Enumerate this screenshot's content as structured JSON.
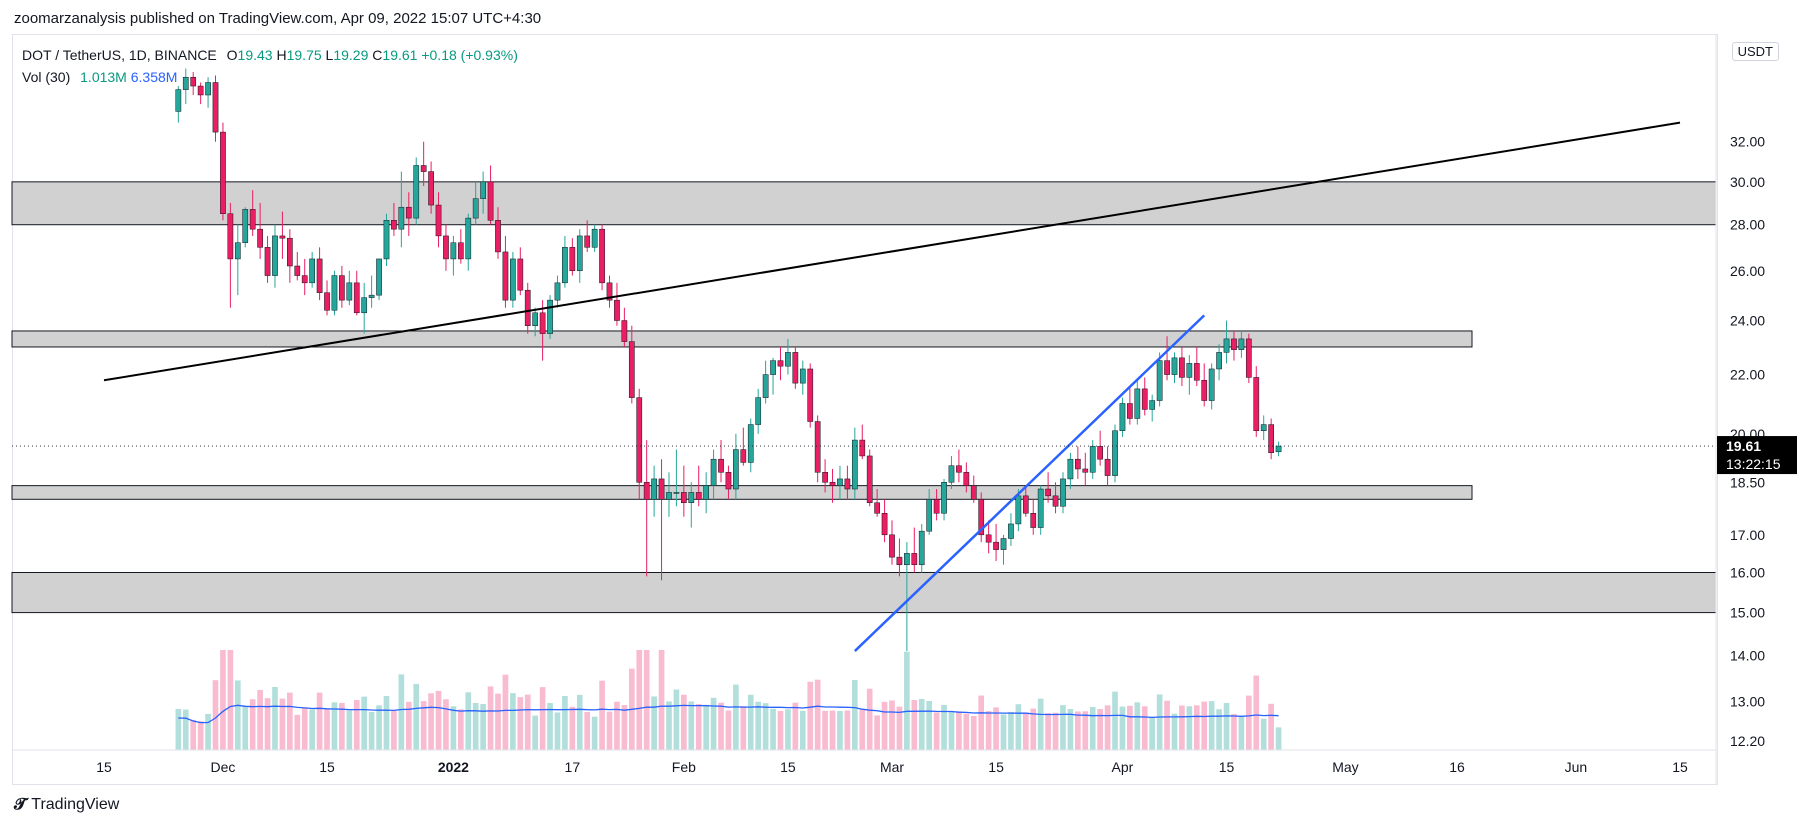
{
  "header": {
    "published_by": "zoomarzanalysis published on TradingView.com, Apr 09, 2022 15:07 UTC+4:30"
  },
  "legend": {
    "symbol": "DOT / TetherUS, 1D, BINANCE",
    "open_label": "O",
    "open": "19.43",
    "high_label": "H",
    "high": "19.75",
    "low_label": "L",
    "low": "19.29",
    "close_label": "C",
    "close": "19.61",
    "change": "+0.18 (+0.93%)",
    "vol_label": "Vol (30)",
    "vol_value": "1.013M",
    "vol_ma": "6.358M"
  },
  "currency_badge": "USDT",
  "footer": {
    "brand": "TradingView"
  },
  "price_badge": {
    "price": "19.61",
    "countdown": "13:22:15"
  },
  "colors": {
    "up": "#26a69a",
    "down": "#e91e63",
    "vol_up": "#b2dfdb",
    "vol_down": "#f8bbd0",
    "vol_ma": "#2962ff",
    "zone_fill": "#d1d1d1",
    "trend_black": "#000000",
    "trend_blue": "#2962ff"
  },
  "chart_data": {
    "type": "candlestick",
    "symbol": "DOT / TetherUS",
    "interval": "1D",
    "exchange": "BINANCE",
    "y_scale": "log",
    "y_ticks": [
      "12.20",
      "13.00",
      "14.00",
      "15.00",
      "16.00",
      "17.00",
      "18.50",
      "20.00",
      "22.00",
      "24.00",
      "26.00",
      "28.00",
      "30.00",
      "32.00"
    ],
    "y_ticks_values": [
      12.2,
      13,
      14,
      15,
      16,
      17,
      18.5,
      20,
      22,
      24,
      26,
      28,
      30,
      32
    ],
    "x_ticks": [
      {
        "label": "15",
        "date": "2021-11-15"
      },
      {
        "label": "Dec",
        "date": "2021-12-01"
      },
      {
        "label": "15",
        "date": "2021-12-15"
      },
      {
        "label": "2022",
        "date": "2022-01-01",
        "bold": true
      },
      {
        "label": "17",
        "date": "2022-01-17"
      },
      {
        "label": "Feb",
        "date": "2022-02-01"
      },
      {
        "label": "15",
        "date": "2022-02-15"
      },
      {
        "label": "Mar",
        "date": "2022-03-01"
      },
      {
        "label": "15",
        "date": "2022-03-15"
      },
      {
        "label": "Apr",
        "date": "2022-04-01"
      },
      {
        "label": "15",
        "date": "2022-04-15"
      },
      {
        "label": "May",
        "date": "2022-05-01"
      },
      {
        "label": "16",
        "date": "2022-05-16"
      },
      {
        "label": "Jun",
        "date": "2022-06-01"
      },
      {
        "label": "15",
        "date": "2022-06-15"
      }
    ],
    "start_date": "2021-11-25",
    "candles": [
      [
        33.6,
        35.0,
        33.0,
        34.8
      ],
      [
        34.8,
        36.0,
        34.0,
        35.5
      ],
      [
        35.5,
        35.8,
        34.5,
        35.0
      ],
      [
        35.0,
        35.2,
        34.0,
        34.5
      ],
      [
        34.5,
        35.5,
        33.8,
        35.2
      ],
      [
        35.2,
        35.6,
        32.0,
        32.5
      ],
      [
        32.5,
        33.0,
        28.2,
        28.5
      ],
      [
        28.5,
        29.0,
        24.5,
        26.5
      ],
      [
        26.5,
        28.0,
        25.0,
        27.2
      ],
      [
        27.2,
        28.8,
        27.0,
        28.7
      ],
      [
        28.7,
        29.6,
        27.5,
        27.8
      ],
      [
        27.8,
        29.0,
        26.5,
        27.0
      ],
      [
        27.0,
        27.5,
        25.5,
        25.8
      ],
      [
        25.8,
        28.0,
        25.3,
        27.5
      ],
      [
        27.5,
        28.6,
        26.5,
        27.4
      ],
      [
        27.4,
        27.8,
        25.5,
        26.2
      ],
      [
        26.2,
        26.8,
        25.6,
        25.8
      ],
      [
        25.8,
        26.5,
        25.0,
        25.5
      ],
      [
        25.5,
        26.8,
        25.3,
        26.5
      ],
      [
        26.5,
        27.0,
        24.8,
        25.1
      ],
      [
        25.1,
        25.6,
        24.2,
        24.4
      ],
      [
        24.4,
        26.0,
        24.2,
        25.8
      ],
      [
        25.8,
        26.2,
        24.5,
        24.8
      ],
      [
        24.8,
        26.0,
        24.6,
        25.5
      ],
      [
        25.5,
        26.0,
        24.2,
        24.3
      ],
      [
        24.3,
        25.5,
        23.5,
        24.9
      ],
      [
        24.9,
        25.8,
        24.5,
        25.0
      ],
      [
        25.0,
        26.5,
        24.8,
        26.5
      ],
      [
        26.5,
        28.5,
        26.2,
        28.2
      ],
      [
        28.2,
        29.0,
        27.5,
        27.8
      ],
      [
        27.8,
        30.5,
        27.0,
        28.8
      ],
      [
        28.8,
        29.5,
        27.5,
        28.3
      ],
      [
        28.3,
        31.2,
        28.0,
        30.8
      ],
      [
        30.8,
        32.0,
        29.8,
        30.5
      ],
      [
        30.5,
        31.0,
        28.5,
        28.9
      ],
      [
        28.9,
        29.5,
        27.0,
        27.5
      ],
      [
        27.5,
        28.0,
        26.0,
        26.5
      ],
      [
        26.5,
        27.5,
        25.8,
        27.2
      ],
      [
        27.2,
        27.8,
        26.3,
        26.5
      ],
      [
        26.5,
        28.5,
        26.0,
        28.3
      ],
      [
        28.3,
        30.0,
        28.0,
        29.2
      ],
      [
        29.2,
        30.5,
        28.5,
        30.0
      ],
      [
        30.0,
        30.8,
        28.0,
        28.2
      ],
      [
        28.2,
        28.8,
        26.5,
        26.8
      ],
      [
        26.8,
        27.5,
        24.5,
        24.8
      ],
      [
        24.8,
        26.8,
        24.5,
        26.5
      ],
      [
        26.5,
        27.0,
        25.0,
        25.2
      ],
      [
        25.2,
        25.5,
        23.5,
        23.8
      ],
      [
        23.8,
        24.5,
        23.4,
        24.3
      ],
      [
        24.3,
        24.8,
        22.5,
        23.5
      ],
      [
        23.5,
        25.0,
        23.3,
        24.8
      ],
      [
        24.8,
        25.8,
        24.5,
        25.5
      ],
      [
        25.5,
        27.5,
        25.3,
        27.0
      ],
      [
        27.0,
        27.4,
        25.8,
        26.0
      ],
      [
        26.0,
        27.8,
        25.5,
        27.5
      ],
      [
        27.5,
        28.2,
        26.8,
        27.0
      ],
      [
        27.0,
        28.0,
        26.8,
        27.8
      ],
      [
        27.8,
        28.0,
        25.2,
        25.5
      ],
      [
        25.5,
        25.8,
        24.5,
        24.8
      ],
      [
        24.8,
        25.5,
        23.8,
        24.0
      ],
      [
        24.0,
        24.5,
        23.0,
        23.2
      ],
      [
        23.2,
        23.8,
        21.0,
        21.2
      ],
      [
        21.2,
        21.5,
        18.0,
        18.5
      ],
      [
        18.5,
        19.8,
        15.9,
        18.0
      ],
      [
        18.0,
        19.0,
        17.5,
        18.6
      ],
      [
        18.6,
        19.2,
        15.8,
        18.0
      ],
      [
        18.0,
        18.8,
        17.5,
        18.2
      ],
      [
        18.2,
        19.5,
        17.8,
        18.2
      ],
      [
        18.2,
        19.0,
        17.5,
        17.9
      ],
      [
        17.9,
        18.5,
        17.2,
        18.2
      ],
      [
        18.2,
        19.0,
        17.8,
        18.0
      ],
      [
        18.0,
        18.8,
        17.6,
        18.4
      ],
      [
        18.4,
        19.5,
        18.0,
        19.2
      ],
      [
        19.2,
        19.8,
        18.5,
        18.8
      ],
      [
        18.8,
        19.0,
        18.0,
        18.3
      ],
      [
        18.3,
        20.0,
        18.0,
        19.5
      ],
      [
        19.5,
        20.2,
        19.0,
        19.1
      ],
      [
        19.1,
        20.5,
        18.8,
        20.3
      ],
      [
        20.3,
        21.5,
        20.0,
        21.2
      ],
      [
        21.2,
        22.5,
        21.0,
        22.0
      ],
      [
        22.0,
        22.6,
        21.3,
        22.5
      ],
      [
        22.5,
        23.0,
        21.8,
        22.3
      ],
      [
        22.3,
        23.3,
        22.0,
        22.8
      ],
      [
        22.8,
        23.0,
        21.5,
        21.7
      ],
      [
        21.7,
        22.5,
        21.3,
        22.2
      ],
      [
        22.2,
        22.4,
        20.2,
        20.4
      ],
      [
        20.4,
        20.6,
        18.5,
        18.8
      ],
      [
        18.8,
        19.2,
        18.2,
        18.5
      ],
      [
        18.5,
        18.9,
        17.9,
        18.4
      ],
      [
        18.4,
        19.0,
        18.0,
        18.6
      ],
      [
        18.6,
        19.0,
        18.0,
        18.3
      ],
      [
        18.3,
        20.2,
        18.0,
        19.8
      ],
      [
        19.8,
        20.3,
        19.2,
        19.3
      ],
      [
        19.3,
        19.5,
        17.8,
        17.9
      ],
      [
        17.9,
        18.3,
        17.5,
        17.6
      ],
      [
        17.6,
        18.0,
        16.8,
        17.0
      ],
      [
        17.0,
        17.4,
        16.2,
        16.4
      ],
      [
        16.4,
        16.9,
        15.9,
        16.2
      ],
      [
        16.2,
        16.8,
        14.1,
        16.5
      ],
      [
        16.5,
        17.2,
        16.0,
        16.2
      ],
      [
        16.2,
        17.3,
        16.0,
        17.1
      ],
      [
        17.1,
        18.3,
        17.0,
        18.0
      ],
      [
        18.0,
        18.3,
        17.4,
        17.6
      ],
      [
        17.6,
        18.6,
        17.4,
        18.5
      ],
      [
        18.5,
        19.3,
        18.3,
        19.0
      ],
      [
        19.0,
        19.5,
        18.5,
        18.8
      ],
      [
        18.8,
        19.1,
        18.2,
        18.4
      ],
      [
        18.4,
        18.7,
        17.9,
        18.0
      ],
      [
        18.0,
        18.2,
        16.8,
        17.0
      ],
      [
        17.0,
        17.4,
        16.5,
        16.8
      ],
      [
        16.8,
        17.3,
        16.3,
        16.6
      ],
      [
        16.6,
        17.0,
        16.2,
        16.9
      ],
      [
        16.9,
        17.6,
        16.7,
        17.3
      ],
      [
        17.3,
        18.3,
        17.1,
        18.1
      ],
      [
        18.1,
        18.4,
        17.5,
        17.6
      ],
      [
        17.6,
        18.0,
        17.0,
        17.2
      ],
      [
        17.2,
        18.4,
        17.0,
        18.3
      ],
      [
        18.3,
        18.8,
        17.9,
        18.1
      ],
      [
        18.1,
        18.5,
        17.6,
        17.8
      ],
      [
        17.8,
        18.8,
        17.6,
        18.6
      ],
      [
        18.6,
        19.4,
        18.3,
        19.2
      ],
      [
        19.2,
        19.6,
        18.6,
        18.9
      ],
      [
        18.9,
        19.4,
        18.4,
        18.8
      ],
      [
        18.8,
        19.8,
        18.6,
        19.6
      ],
      [
        19.6,
        20.1,
        19.0,
        19.2
      ],
      [
        19.2,
        19.6,
        18.4,
        18.7
      ],
      [
        18.7,
        20.3,
        18.5,
        20.1
      ],
      [
        20.1,
        21.2,
        19.9,
        21.0
      ],
      [
        21.0,
        21.6,
        20.3,
        20.5
      ],
      [
        20.5,
        21.8,
        20.3,
        21.5
      ],
      [
        21.5,
        21.9,
        20.6,
        20.8
      ],
      [
        20.8,
        21.3,
        20.4,
        21.1
      ],
      [
        21.1,
        22.8,
        20.9,
        22.5
      ],
      [
        22.5,
        23.4,
        21.8,
        22.0
      ],
      [
        22.0,
        22.8,
        21.7,
        22.6
      ],
      [
        22.6,
        23.0,
        21.6,
        21.9
      ],
      [
        21.9,
        22.7,
        21.3,
        22.4
      ],
      [
        22.4,
        23.0,
        21.6,
        21.8
      ],
      [
        21.8,
        22.4,
        20.9,
        21.1
      ],
      [
        21.1,
        22.4,
        20.8,
        22.2
      ],
      [
        22.2,
        23.1,
        21.8,
        22.8
      ],
      [
        22.8,
        24.0,
        22.4,
        23.3
      ],
      [
        23.3,
        23.6,
        22.5,
        22.9
      ],
      [
        22.9,
        23.6,
        22.6,
        23.3
      ],
      [
        23.3,
        23.5,
        21.7,
        21.9
      ],
      [
        21.9,
        22.3,
        19.9,
        20.1
      ],
      [
        20.1,
        20.6,
        19.8,
        20.3
      ],
      [
        20.3,
        20.5,
        19.2,
        19.4
      ],
      [
        19.43,
        19.75,
        19.29,
        19.61
      ]
    ],
    "volume_ma_label": "Vol (30)",
    "volume_ma_value": "6.358M",
    "last_volume": "1.013M",
    "horizontal_zones": [
      {
        "name": "resistance-zone-28-30",
        "low": 28.0,
        "high": 30.0
      },
      {
        "name": "zone-23-24",
        "low": 23.0,
        "high": 23.6
      },
      {
        "name": "zone-18",
        "low": 18.0,
        "high": 18.4
      },
      {
        "name": "support-zone-15-16",
        "low": 15.0,
        "high": 16.0
      }
    ],
    "trend_lines": [
      {
        "name": "black-trendline",
        "color": "#000000",
        "from": {
          "date": "2021-11-15",
          "price": 21.8
        },
        "to": {
          "date": "2022-06-15",
          "price": 33.0
        }
      },
      {
        "name": "blue-trendline",
        "color": "#2962ff",
        "from": {
          "date": "2022-02-24",
          "price": 14.1
        },
        "to": {
          "date": "2022-04-12",
          "price": 24.2
        }
      }
    ],
    "last_price": 19.61,
    "countdown": "13:22:15",
    "grid": false,
    "legend_position": "top-left"
  }
}
